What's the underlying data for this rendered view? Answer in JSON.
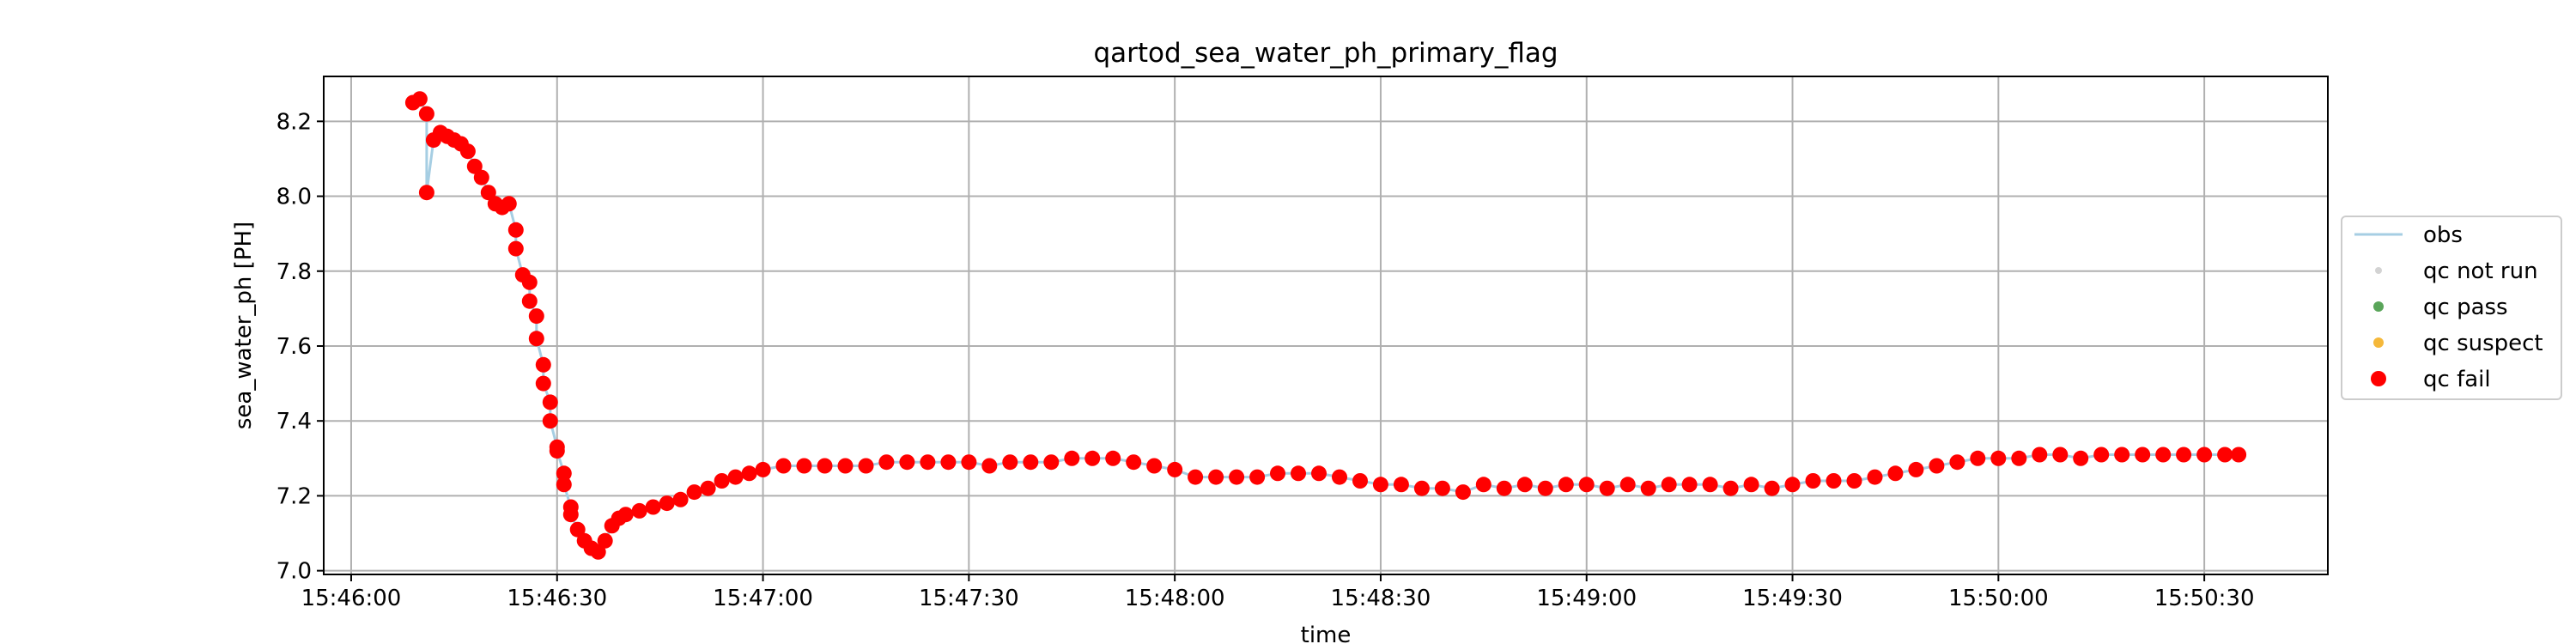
{
  "chart_data": {
    "type": "scatter",
    "title": "qartod_sea_water_ph_primary_flag",
    "xlabel": "time",
    "ylabel": "sea_water_ph [PH]",
    "x_ticks": [
      "15:46:00",
      "15:46:30",
      "15:47:00",
      "15:47:30",
      "15:48:00",
      "15:48:30",
      "15:49:00",
      "15:49:30",
      "15:50:00",
      "15:50:30"
    ],
    "y_ticks": [
      "7.0",
      "7.2",
      "7.4",
      "7.6",
      "7.8",
      "8.0",
      "8.2"
    ],
    "xlim": [
      "15:45:56",
      "15:50:48"
    ],
    "ylim": [
      6.99,
      8.32
    ],
    "grid": true,
    "legend_position": "center-right",
    "legend": [
      {
        "label": "obs",
        "kind": "line",
        "color": "#a6cee3"
      },
      {
        "label": "qc not run",
        "kind": "dot",
        "color": "#d3d3d3"
      },
      {
        "label": "qc pass",
        "kind": "dot",
        "color": "#5aa55a"
      },
      {
        "label": "qc suspect",
        "kind": "dot",
        "color": "#f5b83a"
      },
      {
        "label": "qc fail",
        "kind": "dot",
        "color": "#ff0000"
      }
    ],
    "series": [
      {
        "name": "qc fail",
        "color": "#ff0000",
        "points": [
          [
            "15:46:09",
            8.25
          ],
          [
            "15:46:10",
            8.26
          ],
          [
            "15:46:11",
            8.22
          ],
          [
            "15:46:11",
            8.01
          ],
          [
            "15:46:12",
            8.15
          ],
          [
            "15:46:13",
            8.17
          ],
          [
            "15:46:14",
            8.16
          ],
          [
            "15:46:15",
            8.15
          ],
          [
            "15:46:16",
            8.14
          ],
          [
            "15:46:17",
            8.12
          ],
          [
            "15:46:18",
            8.08
          ],
          [
            "15:46:19",
            8.05
          ],
          [
            "15:46:20",
            8.01
          ],
          [
            "15:46:21",
            7.98
          ],
          [
            "15:46:22",
            7.97
          ],
          [
            "15:46:23",
            7.98
          ],
          [
            "15:46:24",
            7.91
          ],
          [
            "15:46:24",
            7.86
          ],
          [
            "15:46:25",
            7.79
          ],
          [
            "15:46:26",
            7.77
          ],
          [
            "15:46:26",
            7.72
          ],
          [
            "15:46:27",
            7.68
          ],
          [
            "15:46:27",
            7.62
          ],
          [
            "15:46:28",
            7.55
          ],
          [
            "15:46:28",
            7.5
          ],
          [
            "15:46:29",
            7.45
          ],
          [
            "15:46:29",
            7.4
          ],
          [
            "15:46:30",
            7.33
          ],
          [
            "15:46:30",
            7.32
          ],
          [
            "15:46:31",
            7.26
          ],
          [
            "15:46:31",
            7.23
          ],
          [
            "15:46:32",
            7.17
          ],
          [
            "15:46:32",
            7.15
          ],
          [
            "15:46:33",
            7.11
          ],
          [
            "15:46:34",
            7.08
          ],
          [
            "15:46:35",
            7.06
          ],
          [
            "15:46:36",
            7.05
          ],
          [
            "15:46:37",
            7.08
          ],
          [
            "15:46:38",
            7.12
          ],
          [
            "15:46:39",
            7.14
          ],
          [
            "15:46:40",
            7.15
          ],
          [
            "15:46:42",
            7.16
          ],
          [
            "15:46:44",
            7.17
          ],
          [
            "15:46:46",
            7.18
          ],
          [
            "15:46:48",
            7.19
          ],
          [
            "15:46:50",
            7.21
          ],
          [
            "15:46:52",
            7.22
          ],
          [
            "15:46:54",
            7.24
          ],
          [
            "15:46:56",
            7.25
          ],
          [
            "15:46:58",
            7.26
          ],
          [
            "15:47:00",
            7.27
          ],
          [
            "15:47:03",
            7.28
          ],
          [
            "15:47:06",
            7.28
          ],
          [
            "15:47:09",
            7.28
          ],
          [
            "15:47:12",
            7.28
          ],
          [
            "15:47:15",
            7.28
          ],
          [
            "15:47:18",
            7.29
          ],
          [
            "15:47:21",
            7.29
          ],
          [
            "15:47:24",
            7.29
          ],
          [
            "15:47:27",
            7.29
          ],
          [
            "15:47:30",
            7.29
          ],
          [
            "15:47:33",
            7.28
          ],
          [
            "15:47:36",
            7.29
          ],
          [
            "15:47:39",
            7.29
          ],
          [
            "15:47:42",
            7.29
          ],
          [
            "15:47:45",
            7.3
          ],
          [
            "15:47:48",
            7.3
          ],
          [
            "15:47:51",
            7.3
          ],
          [
            "15:47:54",
            7.29
          ],
          [
            "15:47:57",
            7.28
          ],
          [
            "15:48:00",
            7.27
          ],
          [
            "15:48:03",
            7.25
          ],
          [
            "15:48:06",
            7.25
          ],
          [
            "15:48:09",
            7.25
          ],
          [
            "15:48:12",
            7.25
          ],
          [
            "15:48:15",
            7.26
          ],
          [
            "15:48:18",
            7.26
          ],
          [
            "15:48:21",
            7.26
          ],
          [
            "15:48:24",
            7.25
          ],
          [
            "15:48:27",
            7.24
          ],
          [
            "15:48:30",
            7.23
          ],
          [
            "15:48:33",
            7.23
          ],
          [
            "15:48:36",
            7.22
          ],
          [
            "15:48:39",
            7.22
          ],
          [
            "15:48:42",
            7.21
          ],
          [
            "15:48:45",
            7.23
          ],
          [
            "15:48:48",
            7.22
          ],
          [
            "15:48:51",
            7.23
          ],
          [
            "15:48:54",
            7.22
          ],
          [
            "15:48:57",
            7.23
          ],
          [
            "15:49:00",
            7.23
          ],
          [
            "15:49:03",
            7.22
          ],
          [
            "15:49:06",
            7.23
          ],
          [
            "15:49:09",
            7.22
          ],
          [
            "15:49:12",
            7.23
          ],
          [
            "15:49:15",
            7.23
          ],
          [
            "15:49:18",
            7.23
          ],
          [
            "15:49:21",
            7.22
          ],
          [
            "15:49:24",
            7.23
          ],
          [
            "15:49:27",
            7.22
          ],
          [
            "15:49:30",
            7.23
          ],
          [
            "15:49:33",
            7.24
          ],
          [
            "15:49:36",
            7.24
          ],
          [
            "15:49:39",
            7.24
          ],
          [
            "15:49:42",
            7.25
          ],
          [
            "15:49:45",
            7.26
          ],
          [
            "15:49:48",
            7.27
          ],
          [
            "15:49:51",
            7.28
          ],
          [
            "15:49:54",
            7.29
          ],
          [
            "15:49:57",
            7.3
          ],
          [
            "15:50:00",
            7.3
          ],
          [
            "15:50:03",
            7.3
          ],
          [
            "15:50:06",
            7.31
          ],
          [
            "15:50:09",
            7.31
          ],
          [
            "15:50:12",
            7.3
          ],
          [
            "15:50:15",
            7.31
          ],
          [
            "15:50:18",
            7.31
          ],
          [
            "15:50:21",
            7.31
          ],
          [
            "15:50:24",
            7.31
          ],
          [
            "15:50:27",
            7.31
          ],
          [
            "15:50:30",
            7.31
          ],
          [
            "15:50:33",
            7.31
          ],
          [
            "15:50:35",
            7.31
          ]
        ]
      }
    ]
  }
}
